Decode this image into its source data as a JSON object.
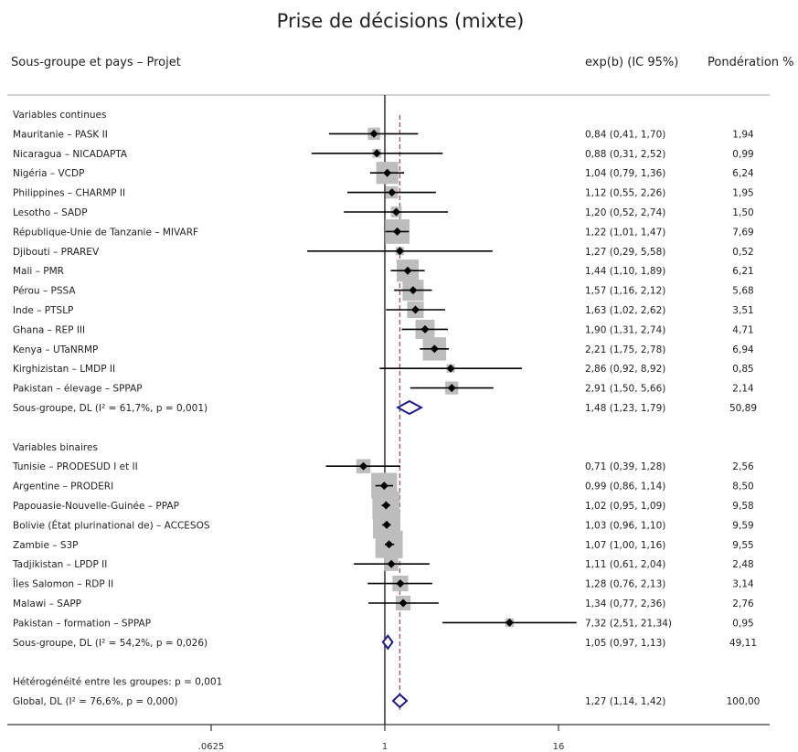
{
  "chart_data": {
    "type": "forest",
    "title": "Prise de décisions (mixte)",
    "headers": {
      "label": "Sous-groupe et pays – Projet",
      "estimate": "exp(b) (IC 95%)",
      "weight": "Pondération %"
    },
    "x_scale": "log2",
    "x_ticks": [
      {
        "value": 0.0625,
        "label": ".0625"
      },
      {
        "value": 1,
        "label": "1"
      },
      {
        "value": 16,
        "label": "16"
      }
    ],
    "reference_line": 1,
    "overall_line": 1.27,
    "colors": {
      "diamond": "#1a1a8c",
      "box": "#bdbdbd",
      "overall_line": "#a0565e",
      "marker": "#000000"
    },
    "groups": [
      {
        "label": "Variables continues",
        "studies": [
          {
            "label": "Mauritanie – PASK II",
            "est": 0.84,
            "lo": 0.41,
            "hi": 1.7,
            "ci": "0,84 (0,41, 1,70)",
            "weight": "1,94",
            "w": 1.94
          },
          {
            "label": "Nicaragua – NICADAPTA",
            "est": 0.88,
            "lo": 0.31,
            "hi": 2.52,
            "ci": "0,88 (0,31, 2,52)",
            "weight": "0,99",
            "w": 0.99
          },
          {
            "label": "Nigéria – VCDP",
            "est": 1.04,
            "lo": 0.79,
            "hi": 1.36,
            "ci": "1,04 (0,79, 1,36)",
            "weight": "6,24",
            "w": 6.24
          },
          {
            "label": "Philippines – CHARMP II",
            "est": 1.12,
            "lo": 0.55,
            "hi": 2.26,
            "ci": "1,12 (0,55, 2,26)",
            "weight": "1,95",
            "w": 1.95
          },
          {
            "label": "Lesotho – SADP",
            "est": 1.2,
            "lo": 0.52,
            "hi": 2.74,
            "ci": "1,20 (0,52, 2,74)",
            "weight": "1,50",
            "w": 1.5
          },
          {
            "label": "République-Unie de Tanzanie – MIVARF",
            "est": 1.22,
            "lo": 1.01,
            "hi": 1.47,
            "ci": "1,22 (1,01, 1,47)",
            "weight": "7,69",
            "w": 7.69
          },
          {
            "label": "Djibouti – PRAREV",
            "est": 1.27,
            "lo": 0.29,
            "hi": 5.58,
            "ci": "1,27 (0,29, 5,58)",
            "weight": "0,52",
            "w": 0.52
          },
          {
            "label": "Mali – PMR",
            "est": 1.44,
            "lo": 1.1,
            "hi": 1.89,
            "ci": "1,44 (1,10, 1,89)",
            "weight": "6,21",
            "w": 6.21
          },
          {
            "label": "Pérou – PSSA",
            "est": 1.57,
            "lo": 1.16,
            "hi": 2.12,
            "ci": "1,57 (1,16, 2,12)",
            "weight": "5,68",
            "w": 5.68
          },
          {
            "label": "Inde – PTSLP",
            "est": 1.63,
            "lo": 1.02,
            "hi": 2.62,
            "ci": "1,63 (1,02, 2,62)",
            "weight": "3,51",
            "w": 3.51
          },
          {
            "label": "Ghana – REP III",
            "est": 1.9,
            "lo": 1.31,
            "hi": 2.74,
            "ci": "1,90 (1,31, 2,74)",
            "weight": "4,71",
            "w": 4.71
          },
          {
            "label": "Kenya – UTaNRMP",
            "est": 2.21,
            "lo": 1.75,
            "hi": 2.78,
            "ci": "2,21 (1,75, 2,78)",
            "weight": "6,94",
            "w": 6.94
          },
          {
            "label": "Kirghizistan – LMDP II",
            "est": 2.86,
            "lo": 0.92,
            "hi": 8.92,
            "ci": "2,86 (0,92, 8,92)",
            "weight": "0,85",
            "w": 0.85
          },
          {
            "label": "Pakistan – élevage – SPPAP",
            "est": 2.91,
            "lo": 1.5,
            "hi": 5.66,
            "ci": "2,91 (1,50, 5,66)",
            "weight": "2,14",
            "w": 2.14
          }
        ],
        "subtotal": {
          "label": "Sous-groupe, DL (I² = 61,7%, p = 0,001)",
          "est": 1.48,
          "lo": 1.23,
          "hi": 1.79,
          "ci": "1,48 (1,23, 1,79)",
          "weight": "50,89"
        }
      },
      {
        "label": "Variables binaires",
        "studies": [
          {
            "label": "Tunisie – PRODESUD I et II",
            "est": 0.71,
            "lo": 0.39,
            "hi": 1.28,
            "ci": "0,71 (0,39, 1,28)",
            "weight": "2,56",
            "w": 2.56
          },
          {
            "label": "Argentine – PRODERI",
            "est": 0.99,
            "lo": 0.86,
            "hi": 1.14,
            "ci": "0,99 (0,86, 1,14)",
            "weight": "8,50",
            "w": 8.5
          },
          {
            "label": "Papouasie-Nouvelle-Guinée – PPAP",
            "est": 1.02,
            "lo": 0.95,
            "hi": 1.09,
            "ci": "1,02 (0,95, 1,09)",
            "weight": "9,58",
            "w": 9.58
          },
          {
            "label": "Bolivie (État plurinational de) – ACCESOS",
            "est": 1.03,
            "lo": 0.96,
            "hi": 1.1,
            "ci": "1,03 (0,96, 1,10)",
            "weight": "9,59",
            "w": 9.59
          },
          {
            "label": "Zambie – S3P",
            "est": 1.07,
            "lo": 1.0,
            "hi": 1.16,
            "ci": "1,07 (1,00, 1,16)",
            "weight": "9,55",
            "w": 9.55
          },
          {
            "label": "Tadjikistan – LPDP II",
            "est": 1.11,
            "lo": 0.61,
            "hi": 2.04,
            "ci": "1,11 (0,61, 2,04)",
            "weight": "2,48",
            "w": 2.48
          },
          {
            "label": "Îles Salomon – RDP II",
            "est": 1.28,
            "lo": 0.76,
            "hi": 2.13,
            "ci": "1,28 (0,76, 2,13)",
            "weight": "3,14",
            "w": 3.14
          },
          {
            "label": "Malawi – SAPP",
            "est": 1.34,
            "lo": 0.77,
            "hi": 2.36,
            "ci": "1,34 (0,77, 2,36)",
            "weight": "2,76",
            "w": 2.76
          },
          {
            "label": "Pakistan – formation – SPPAP",
            "est": 7.32,
            "lo": 2.51,
            "hi": 21.34,
            "ci": "7,32 (2,51, 21,34)",
            "weight": "0,95",
            "w": 0.95
          }
        ],
        "subtotal": {
          "label": "Sous-groupe, DL (I² = 54,2%, p = 0,026)",
          "est": 1.05,
          "lo": 0.97,
          "hi": 1.13,
          "ci": "1,05 (0,97, 1,13)",
          "weight": "49,11"
        }
      }
    ],
    "heterogeneity": "Hétérogénéité entre les groupes: p = 0,001",
    "overall": {
      "label": "Global, DL (I² = 76,6%, p = 0,000)",
      "est": 1.27,
      "lo": 1.14,
      "hi": 1.42,
      "ci": "1,27 (1,14, 1,42)",
      "weight": "100,00"
    }
  }
}
